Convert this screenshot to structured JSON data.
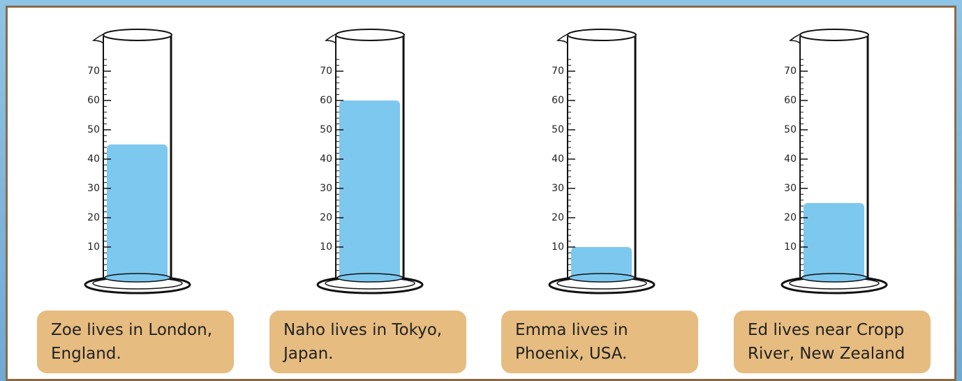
{
  "chart_data": {
    "type": "bar",
    "categories": [
      "Zoe lives in London,\nEngland.",
      "Naho lives in Tokyo,\nJapan.",
      "Emma lives in\nPhoenix, USA.",
      "Ed lives near Cropp\nRiver, New Zealand"
    ],
    "values": [
      45,
      60,
      10,
      25
    ],
    "color": "#7dc8ef",
    "ylim": [
      0,
      80
    ],
    "yticks": [
      10,
      20,
      30,
      40,
      50,
      60,
      70
    ]
  }
}
